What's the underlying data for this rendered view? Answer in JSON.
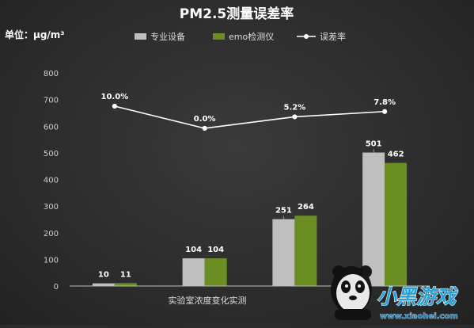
{
  "chart_data": {
    "type": "bar",
    "title": "PM2.5测量误差率",
    "unit_label": "单位：μg/m³",
    "xlabel": "实验室浓度变化实测",
    "categories": [
      "",
      "",
      "",
      ""
    ],
    "ylim": [
      0,
      800
    ],
    "yticks": [
      0,
      100,
      200,
      300,
      400,
      500,
      600,
      700,
      800
    ],
    "grid": false,
    "legend_position": "top",
    "series": [
      {
        "name": "专业设备",
        "kind": "bar",
        "color": "#bfbfbf",
        "values": [
          10,
          104,
          251,
          501
        ],
        "labels": [
          "10",
          "104",
          "251",
          "501"
        ]
      },
      {
        "name": "emo检测仪",
        "kind": "bar",
        "color": "#6b8e23",
        "values": [
          11,
          104,
          264,
          462
        ],
        "labels": [
          "11",
          "104",
          "264",
          "462"
        ]
      },
      {
        "name": "误差率",
        "kind": "line",
        "color": "#ffffff",
        "values": [
          675,
          592,
          635,
          655
        ],
        "labels": [
          "10.0%",
          "0.0%",
          "5.2%",
          "7.8%"
        ]
      }
    ]
  },
  "watermark": {
    "brand": "小黑游戏",
    "url": "www.xiaohei.com"
  }
}
